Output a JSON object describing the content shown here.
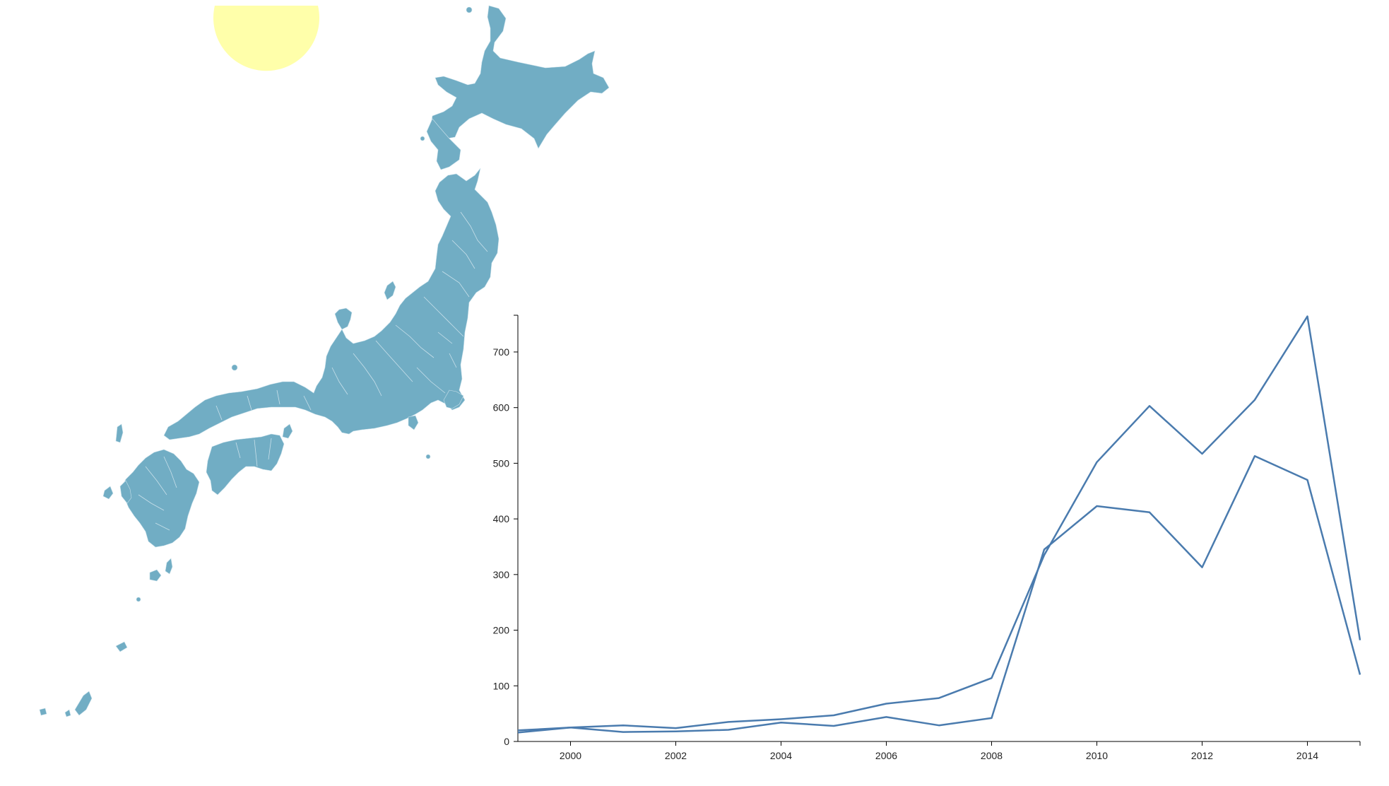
{
  "map": {
    "land_color": "#71adc4",
    "sun_color": "#ffffaa"
  },
  "chart_data": {
    "type": "line",
    "x": [
      1999,
      2000,
      2001,
      2002,
      2003,
      2004,
      2005,
      2006,
      2007,
      2008,
      2009,
      2010,
      2011,
      2012,
      2013,
      2014,
      2015
    ],
    "series": [
      {
        "values": [
          16,
          25,
          29,
          24,
          35,
          40,
          47,
          68,
          78,
          114,
          335,
          502,
          603,
          517,
          614,
          764,
          182
        ]
      },
      {
        "values": [
          20,
          25,
          17,
          18,
          21,
          34,
          28,
          44,
          29,
          42,
          345,
          423,
          412,
          313,
          513,
          470,
          120
        ]
      }
    ],
    "xlabel": "",
    "ylabel": "",
    "xlim": [
      1999,
      2015
    ],
    "ylim": [
      0,
      766
    ],
    "x_ticks": [
      "2000",
      "2002",
      "2004",
      "2006",
      "2008",
      "2010",
      "2012",
      "2014"
    ],
    "y_ticks": [
      "0",
      "100",
      "200",
      "300",
      "400",
      "500",
      "600",
      "700"
    ],
    "line_color": "#4a7bae",
    "grid": false,
    "legend": "none"
  }
}
